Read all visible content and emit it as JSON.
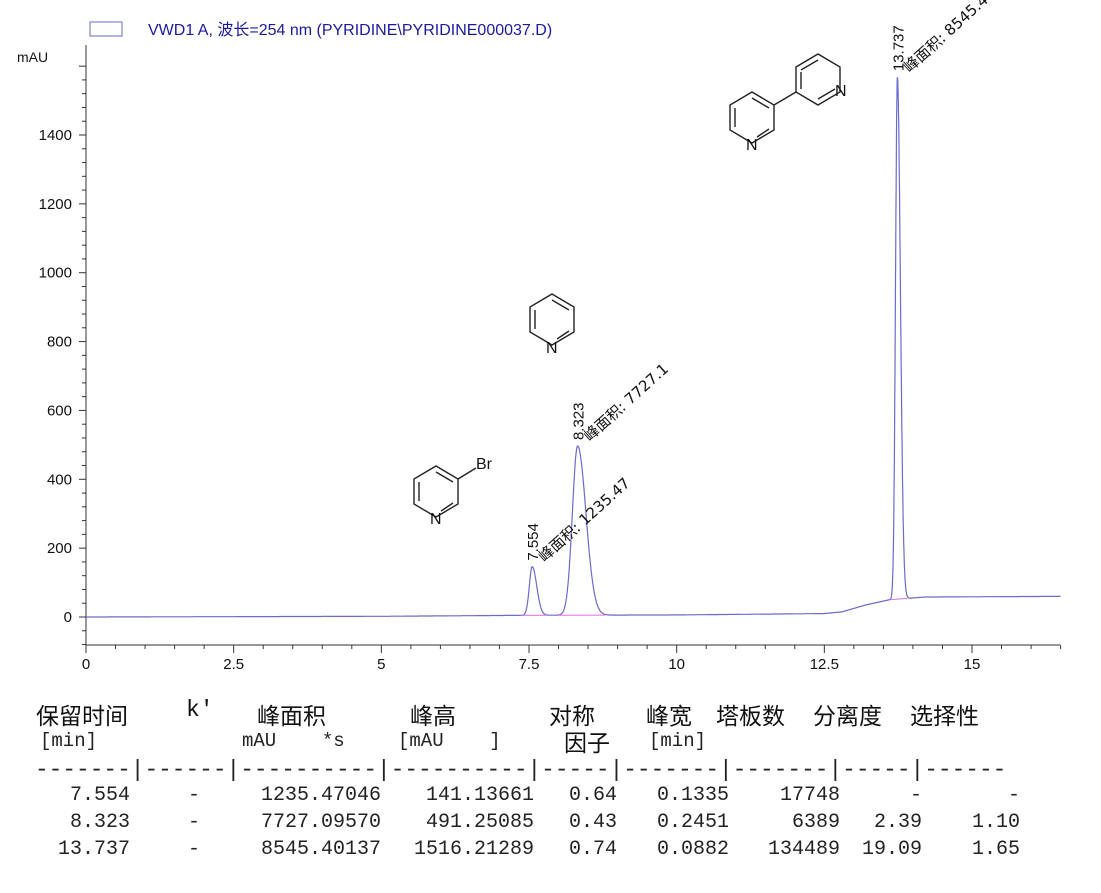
{
  "chart_data": {
    "type": "line",
    "legend": "VWD1 A, 波长=254 nm (PYRIDINE\\PYRIDINE000037.D)",
    "legend_placement": "top-left",
    "ylabel": "mAU",
    "xlabel": "",
    "xlim": [
      0,
      16.5
    ],
    "ylim": [
      -90,
      1620
    ],
    "x_ticks": [
      "0",
      "2.5",
      "5",
      "7.5",
      "10",
      "12.5",
      "15"
    ],
    "x_tick_values": [
      0,
      2.5,
      5,
      7.5,
      10,
      12.5,
      15
    ],
    "y_ticks": [
      "0",
      "200",
      "400",
      "600",
      "800",
      "1000",
      "1200",
      "1400"
    ],
    "y_tick_values": [
      0,
      200,
      400,
      600,
      800,
      1000,
      1200,
      1400
    ],
    "grid": false,
    "series_color": "#6a6ad0",
    "baseline_color": "#e070e0",
    "baseline": [
      [
        0,
        0
      ],
      [
        5,
        2
      ],
      [
        7.5,
        5
      ],
      [
        10,
        6
      ],
      [
        12.5,
        10
      ],
      [
        12.8,
        15
      ],
      [
        13.2,
        35
      ],
      [
        13.6,
        50
      ],
      [
        14.2,
        58
      ],
      [
        16.5,
        60
      ]
    ],
    "peaks": [
      {
        "rt": 7.554,
        "height": 141.13661,
        "width": 0.1335,
        "label": "7.554",
        "area_label": "峰面积: 1235.47"
      },
      {
        "rt": 8.323,
        "height": 491.25085,
        "width": 0.2451,
        "label": "8.323",
        "area_label": "峰面积: 7727.1"
      },
      {
        "rt": 13.737,
        "height": 1516.21289,
        "width": 0.0882,
        "label": "13.737",
        "area_label": "峰面积: 8545.4"
      }
    ],
    "structure_labels": {
      "bromopyridine_n": "N",
      "bromopyridine_br": "Br",
      "pyridine_n": "N",
      "bipyridine_n1": "N",
      "bipyridine_n2": "N"
    }
  },
  "table": {
    "headers": [
      "保留时间",
      "k'",
      "峰面积",
      "峰高",
      "对称",
      "峰宽",
      "塔板数",
      "分离度",
      "选择性"
    ],
    "units": [
      "[min]",
      "mAU    *s",
      "[mAU    ]",
      "因子",
      "[min]"
    ],
    "separator": "-------|------|----------|----------|-----|-------|-------|-----|------",
    "rows": [
      [
        "7.554",
        "-",
        "1235.47046",
        "141.13661",
        "0.64",
        "0.1335",
        "17748",
        "-",
        "-"
      ],
      [
        "8.323",
        "-",
        "7727.09570",
        "491.25085",
        "0.43",
        "0.2451",
        "6389",
        "2.39",
        "1.10"
      ],
      [
        "13.737",
        "-",
        "8545.40137",
        "1516.21289",
        "0.74",
        "0.0882",
        "134489",
        "19.09",
        "1.65"
      ]
    ]
  }
}
